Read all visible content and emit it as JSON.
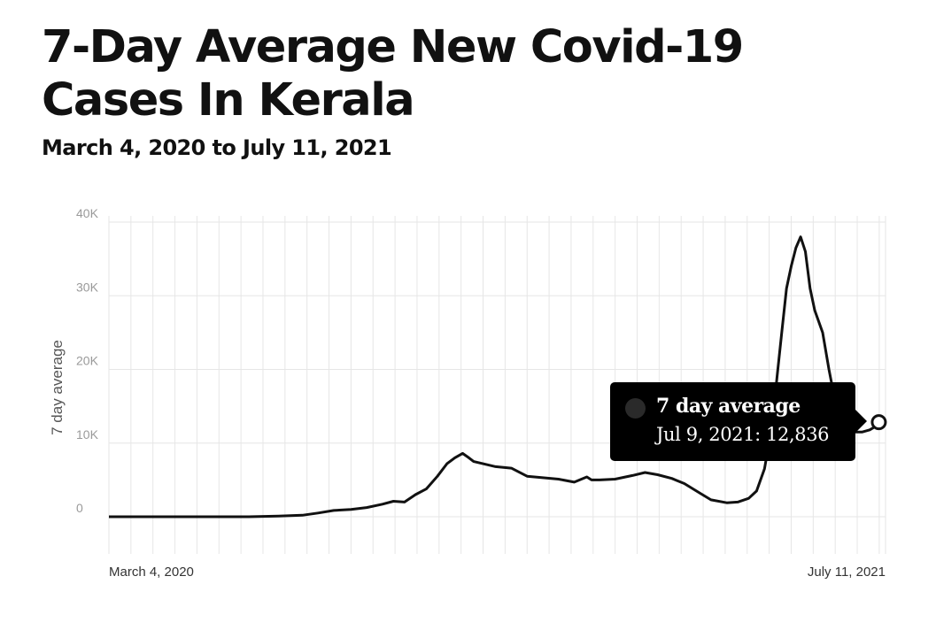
{
  "header": {
    "title": "7-Day Average New Covid-19 Cases In Kerala",
    "subtitle": "March 4, 2020 to July 11, 2021"
  },
  "tooltip": {
    "series_label": "7 day average",
    "value_label": "Jul 9, 2021: 12,836",
    "date": "2021-07-09",
    "value": 12836
  },
  "colors": {
    "line": "#111111",
    "grid": "#e6e6e6",
    "tooltip_bg": "#000000"
  },
  "chart_data": {
    "type": "line",
    "title": "7-Day Average New Covid-19 Cases In Kerala",
    "subtitle": "March 4, 2020 to July 11, 2021",
    "xlabel": "",
    "ylabel": "7 day average",
    "x_range": [
      "2020-03-04",
      "2021-07-11"
    ],
    "ylim": [
      0,
      40000
    ],
    "y_ticks": [
      0,
      10000,
      20000,
      30000,
      40000
    ],
    "y_tick_labels": [
      "0",
      "10K",
      "20K",
      "30K",
      "40K"
    ],
    "x_tick_labels": [
      {
        "date": "2020-03-04",
        "label": "March 4, 2020"
      },
      {
        "date": "2021-07-11",
        "label": "July 11, 2021"
      }
    ],
    "grid": true,
    "series": [
      {
        "name": "7 day average",
        "points": [
          [
            "2020-03-04",
            0
          ],
          [
            "2020-04-15",
            0
          ],
          [
            "2020-06-01",
            0
          ],
          [
            "2020-06-20",
            100
          ],
          [
            "2020-07-05",
            200
          ],
          [
            "2020-07-15",
            500
          ],
          [
            "2020-07-25",
            850
          ],
          [
            "2020-08-05",
            1000
          ],
          [
            "2020-08-15",
            1250
          ],
          [
            "2020-08-25",
            1700
          ],
          [
            "2020-09-01",
            2100
          ],
          [
            "2020-09-08",
            2000
          ],
          [
            "2020-09-15",
            3000
          ],
          [
            "2020-09-22",
            3800
          ],
          [
            "2020-09-29",
            5500
          ],
          [
            "2020-10-05",
            7200
          ],
          [
            "2020-10-10",
            8000
          ],
          [
            "2020-10-15",
            8600
          ],
          [
            "2020-10-19",
            8000
          ],
          [
            "2020-10-22",
            7500
          ],
          [
            "2020-10-28",
            7200
          ],
          [
            "2020-11-05",
            6800
          ],
          [
            "2020-11-15",
            6600
          ],
          [
            "2020-11-25",
            5500
          ],
          [
            "2020-12-05",
            5300
          ],
          [
            "2020-12-15",
            5100
          ],
          [
            "2020-12-25",
            4700
          ],
          [
            "2021-01-02",
            5400
          ],
          [
            "2021-01-05",
            5000
          ],
          [
            "2021-01-10",
            5000
          ],
          [
            "2021-01-20",
            5100
          ],
          [
            "2021-01-31",
            5600
          ],
          [
            "2021-02-08",
            6000
          ],
          [
            "2021-02-16",
            5700
          ],
          [
            "2021-02-25",
            5200
          ],
          [
            "2021-03-05",
            4500
          ],
          [
            "2021-03-15",
            3200
          ],
          [
            "2021-03-22",
            2300
          ],
          [
            "2021-04-01",
            1900
          ],
          [
            "2021-04-08",
            2000
          ],
          [
            "2021-04-15",
            2500
          ],
          [
            "2021-04-20",
            3500
          ],
          [
            "2021-04-25",
            6500
          ],
          [
            "2021-04-30",
            12500
          ],
          [
            "2021-05-03",
            19000
          ],
          [
            "2021-05-06",
            25000
          ],
          [
            "2021-05-09",
            31000
          ],
          [
            "2021-05-12",
            34000
          ],
          [
            "2021-05-15",
            36500
          ],
          [
            "2021-05-18",
            38000
          ],
          [
            "2021-05-21",
            36000
          ],
          [
            "2021-05-24",
            31000
          ],
          [
            "2021-05-27",
            28000
          ],
          [
            "2021-06-01",
            25000
          ],
          [
            "2021-06-05",
            20000
          ],
          [
            "2021-06-10",
            14500
          ],
          [
            "2021-06-15",
            12000
          ],
          [
            "2021-06-20",
            11500
          ],
          [
            "2021-06-26",
            11500
          ],
          [
            "2021-07-01",
            11800
          ],
          [
            "2021-07-05",
            12300
          ],
          [
            "2021-07-09",
            12836
          ]
        ]
      }
    ],
    "highlight": {
      "date": "2021-07-09",
      "value": 12836
    }
  }
}
